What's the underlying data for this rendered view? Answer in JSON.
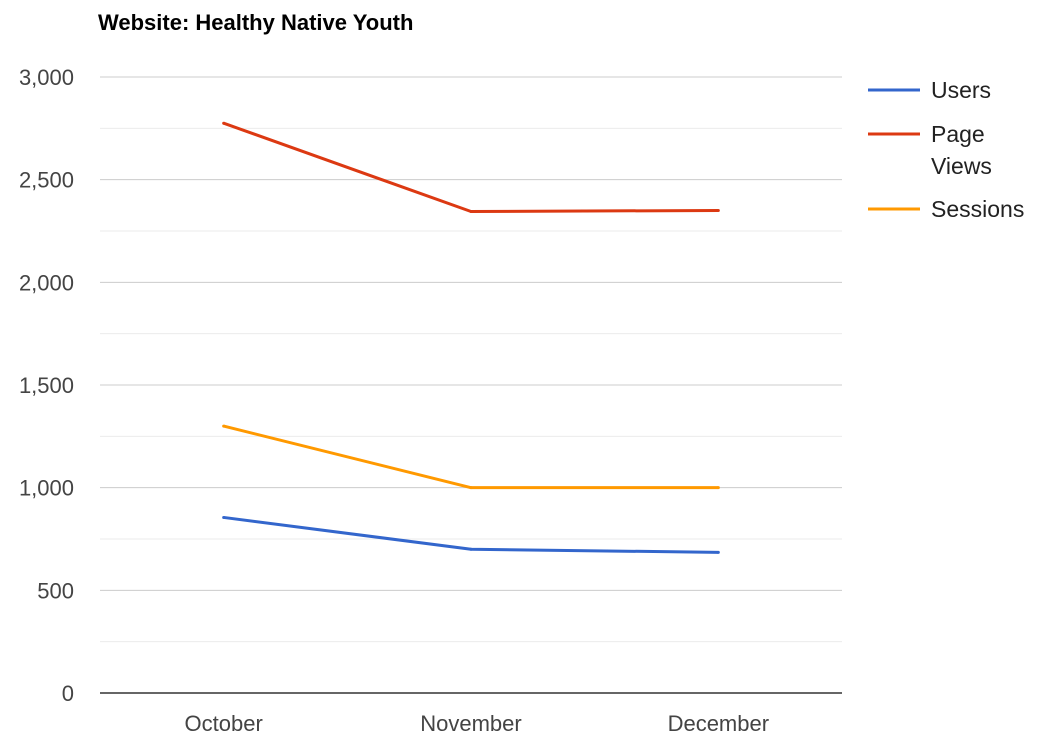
{
  "chart_data": {
    "type": "line",
    "title": "Website: Healthy Native Youth",
    "xlabel": "",
    "ylabel": "",
    "categories": [
      "October",
      "November",
      "December"
    ],
    "ylim": [
      0,
      3000
    ],
    "yticks": [
      0,
      500,
      1000,
      1500,
      2000,
      2500,
      3000
    ],
    "ytick_labels": [
      "0",
      "500",
      "1,000",
      "1,500",
      "2,000",
      "2,500",
      "3,000"
    ],
    "grid": true,
    "legend_position": "right",
    "series": [
      {
        "name": "Users",
        "color": "#3366cc",
        "values": [
          855,
          700,
          685
        ]
      },
      {
        "name": "Page Views",
        "color": "#dc3912",
        "values": [
          2775,
          2345,
          2350
        ]
      },
      {
        "name": "Sessions",
        "color": "#ff9900",
        "values": [
          1300,
          1000,
          1000
        ]
      }
    ],
    "legend_labels": {
      "Users": [
        "Users"
      ],
      "Page Views": [
        "Page",
        "Views"
      ],
      "Sessions": [
        "Sessions"
      ]
    }
  }
}
